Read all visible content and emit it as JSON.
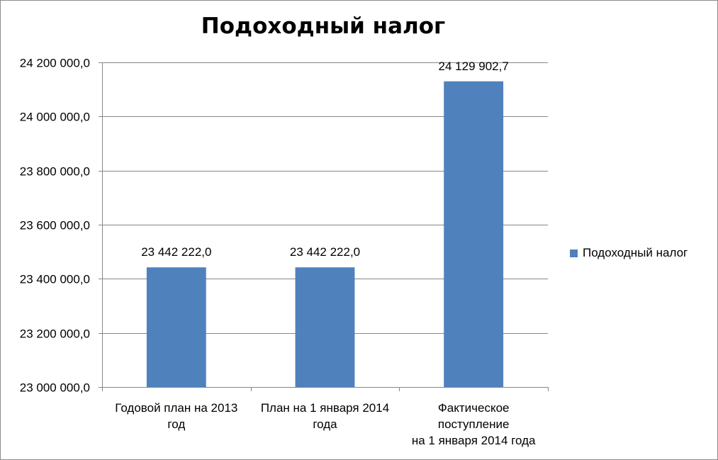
{
  "chart_data": {
    "type": "bar",
    "title": "Подоходный налог",
    "categories": [
      [
        "Годовой  план на 2013",
        "год"
      ],
      [
        "План на 1 января 2014",
        "года"
      ],
      [
        "Фактическое",
        "поступление",
        "на  1 января   2014 года"
      ]
    ],
    "series": [
      {
        "name": "Подоходный налог",
        "values": [
          23442222.0,
          23442222.0,
          24129902.7
        ],
        "value_labels": [
          "23 442 222,0",
          "23 442 222,0",
          "24 129 902,7"
        ],
        "color": "#4f81bd"
      }
    ],
    "ylim": [
      23000000,
      24200000
    ],
    "yticks": [
      23000000,
      23200000,
      23400000,
      23600000,
      23800000,
      24000000,
      24200000
    ],
    "ytick_labels": [
      "23 000 000,0",
      "23 200 000,0",
      "23 400 000,0",
      "23 600 000,0",
      "23 800 000,0",
      "24 000 000,0",
      "24 200 000,0"
    ],
    "xlabel": "",
    "ylabel": "",
    "grid": true,
    "legend_position": "right"
  }
}
